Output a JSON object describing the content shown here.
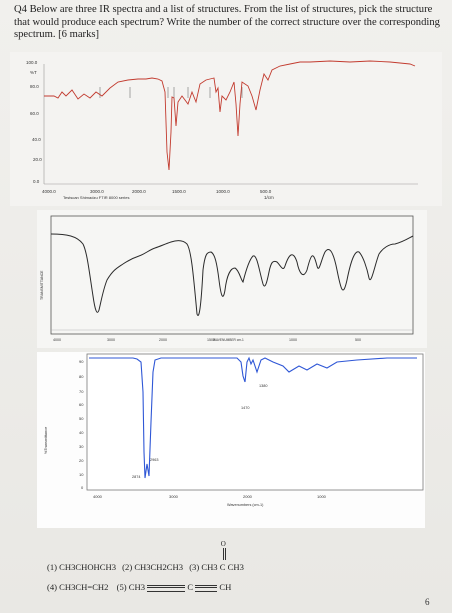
{
  "question": {
    "text": "Q4 Below are three IR spectra and a list of structures. From the list of structures, pick the structure that would produce each spectrum? Write the number of the correct structure over the corresponding spectrum. [6 marks]"
  },
  "spectrum1": {
    "y_ticks": [
      "100.0",
      "%T",
      "80.0",
      "60.0",
      "40.0",
      "20.0",
      "0.0"
    ],
    "x_ticks": [
      "4000.0",
      "3000.0",
      "2000.0",
      "1500.0",
      "1000.0",
      "500.0"
    ],
    "x_unit": "1/cm",
    "footer": "Testscan Shimadzu FTIR 8000 series",
    "colors": {
      "trace": "#c23a2e",
      "peak_markers": "#444444"
    }
  },
  "spectrum2": {
    "x_ticks": [
      "4000",
      "3000",
      "2000",
      "1500",
      "1000",
      "500"
    ],
    "x_label": "WAVENUMBER cm-1",
    "y_label": "TRANSMITTANCE",
    "colors": {
      "trace": "#2b2b2b"
    }
  },
  "spectrum3": {
    "y_ticks": [
      "90",
      "80",
      "70",
      "60",
      "50",
      "40",
      "30",
      "20",
      "10",
      "0"
    ],
    "x_ticks": [
      "4000",
      "3000",
      "2000",
      "1000"
    ],
    "x_label": "Wavenumbers (cm-1)",
    "y_label": "%Transmittance",
    "peak_labels": [
      "1380",
      "1470",
      "2963",
      "2874"
    ],
    "colors": {
      "trace": "#2f57d6",
      "frame": "#7a7a7a"
    }
  },
  "structures": {
    "s1": "(1) CH3CHOHCH3",
    "s2": "(2) CH3CH2CH3",
    "s3_prefix": "(3) CH3",
    "s3_c": "C",
    "s3_suffix": "CH3",
    "s3_o": "O",
    "s4": "(4) CH3CH=CH2",
    "s5_prefix": "(5)   CH3",
    "s5_c": "C",
    "s5_suffix": "CH"
  },
  "page_number": "6"
}
